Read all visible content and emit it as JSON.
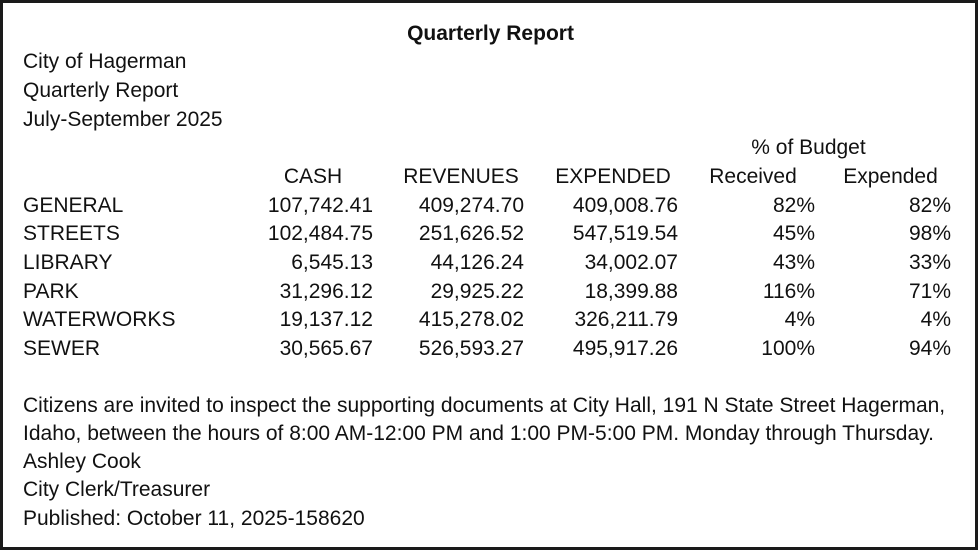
{
  "title": "Quarterly Report",
  "header": {
    "line1": "City of Hagerman",
    "line2": "Quarterly Report",
    "line3": "July-September 2025"
  },
  "table": {
    "group_header": "% of Budget",
    "columns": [
      "CASH",
      "REVENUES",
      "EXPENDED",
      "Received",
      "Expended"
    ],
    "rows": [
      {
        "fund": "GENERAL",
        "cash": "107,742.41",
        "revenues": "409,274.70",
        "expended": "409,008.76",
        "received_pct": "82%",
        "expended_pct": "82%"
      },
      {
        "fund": "STREETS",
        "cash": "102,484.75",
        "revenues": "251,626.52",
        "expended": "547,519.54",
        "received_pct": "45%",
        "expended_pct": "98%"
      },
      {
        "fund": "LIBRARY",
        "cash": "6,545.13",
        "revenues": "44,126.24",
        "expended": "34,002.07",
        "received_pct": "43%",
        "expended_pct": "33%"
      },
      {
        "fund": "PARK",
        "cash": "31,296.12",
        "revenues": "29,925.22",
        "expended": "18,399.88",
        "received_pct": "116%",
        "expended_pct": "71%"
      },
      {
        "fund": "WATERWORKS",
        "cash": "19,137.12",
        "revenues": "415,278.02",
        "expended": "326,211.79",
        "received_pct": "4%",
        "expended_pct": "4%"
      },
      {
        "fund": "SEWER",
        "cash": "30,565.67",
        "revenues": "526,593.27",
        "expended": "495,917.26",
        "received_pct": "100%",
        "expended_pct": "94%"
      }
    ]
  },
  "footer": {
    "invite_line1": "Citizens are invited to inspect the supporting documents at City Hall, 191 N State Street Hagerman,",
    "invite_line2": "Idaho, between the hours of 8:00 AM-12:00 PM and 1:00 PM-5:00 PM. Monday through Thursday.",
    "signer_name": "Ashley Cook",
    "signer_title": "City Clerk/Treasurer",
    "published": "Published: October 11, 2025-158620"
  }
}
